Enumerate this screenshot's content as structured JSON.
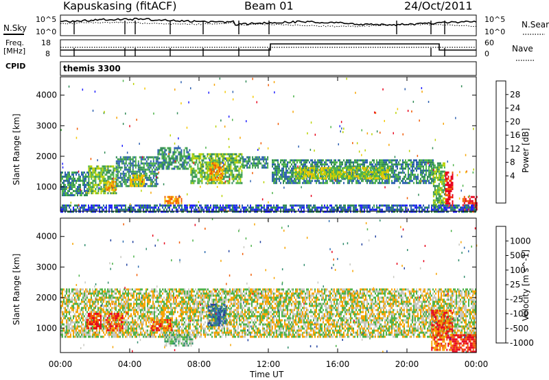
{
  "header": {
    "station": "Kapuskasing (fitACF)",
    "beam": "Beam 01",
    "date": "24/Oct/2011"
  },
  "top_panels": {
    "nsky_label": "N.Sky",
    "nsearch_label": "N.Search",
    "noise_ticks_left": [
      "10^5",
      "10^0"
    ],
    "noise_ticks_right": [
      "10^5",
      "10^0"
    ],
    "freq_label_top": "Freq.",
    "freq_label_bottom": "[MHz]",
    "freq_ticks": [
      "18",
      "8"
    ],
    "nave_label": "Nave",
    "nave_ticks": [
      "60",
      "0"
    ],
    "cpid_label": "CPID",
    "cpid_value": "themis 3300"
  },
  "chart_data": [
    {
      "type": "heatmap",
      "name": "power",
      "ylabel": "Slant Range [km]",
      "xlabel": "",
      "yticks": [
        1000,
        2000,
        3000,
        4000
      ],
      "ylim": [
        200,
        4600
      ],
      "xlim": [
        0,
        24
      ],
      "colorbar": {
        "label": "Power [dB]",
        "ticks": [
          "28",
          "24",
          "20",
          "16",
          "12",
          "8",
          "4"
        ],
        "colors": [
          "#e8001a",
          "#f25a00",
          "#f7a400",
          "#f4c800",
          "#b9d200",
          "#4db34a",
          "#2f8a55",
          "#2b5fb0",
          "#1e1eff"
        ]
      },
      "regions": [
        {
          "t0": 0.0,
          "t1": 1.6,
          "r0": 700,
          "r1": 1500,
          "level": 2
        },
        {
          "t0": 1.6,
          "t1": 3.2,
          "r0": 800,
          "r1": 1700,
          "level": 3
        },
        {
          "t0": 2.6,
          "t1": 3.2,
          "r0": 900,
          "r1": 1200,
          "level": 6
        },
        {
          "t0": 3.2,
          "t1": 5.6,
          "r0": 1000,
          "r1": 2000,
          "level": 2
        },
        {
          "t0": 4.0,
          "t1": 4.8,
          "r0": 1050,
          "r1": 1400,
          "level": 5
        },
        {
          "t0": 5.6,
          "t1": 7.5,
          "r0": 1600,
          "r1": 2300,
          "level": 2
        },
        {
          "t0": 6.0,
          "t1": 7.0,
          "r0": 450,
          "r1": 700,
          "level": 6
        },
        {
          "t0": 7.5,
          "t1": 10.5,
          "r0": 1100,
          "r1": 2100,
          "level": 3
        },
        {
          "t0": 8.6,
          "t1": 9.4,
          "r0": 1200,
          "r1": 1800,
          "level": 6
        },
        {
          "t0": 10.5,
          "t1": 12.0,
          "r0": 1600,
          "r1": 2000,
          "level": 2
        },
        {
          "t0": 12.2,
          "t1": 21.5,
          "r0": 1100,
          "r1": 1900,
          "level": 2
        },
        {
          "t0": 13.5,
          "t1": 19.0,
          "r0": 1300,
          "r1": 1650,
          "level": 4
        },
        {
          "t0": 21.5,
          "t1": 22.2,
          "r0": 300,
          "r1": 1800,
          "level": 3
        },
        {
          "t0": 22.2,
          "t1": 22.6,
          "r0": 400,
          "r1": 1500,
          "level": 8
        },
        {
          "t0": 23.2,
          "t1": 24.0,
          "r0": 200,
          "r1": 700,
          "level": 8
        },
        {
          "t0": 0.0,
          "t1": 24.0,
          "r0": 200,
          "r1": 420,
          "level": 1
        }
      ]
    },
    {
      "type": "heatmap",
      "name": "velocity",
      "ylabel": "Slant Range [km]",
      "xlabel": "Time UT",
      "xticks": [
        "00:00",
        "04:00",
        "08:00",
        "12:00",
        "16:00",
        "20:00",
        "00:00"
      ],
      "yticks": [
        1000,
        2000,
        3000,
        4000
      ],
      "ylim": [
        200,
        4600
      ],
      "xlim": [
        0,
        24
      ],
      "colorbar": {
        "label": "Velocity [m s^-1]",
        "ticks": [
          "1000",
          "500",
          "100",
          "25",
          "-25",
          "-100",
          "-500",
          "-1000"
        ],
        "colors": [
          "#1f3f9f",
          "#2e6db0",
          "#2f8c6b",
          "#4db34a",
          "#c8c8c0",
          "#f7a400",
          "#f25a00",
          "#e8001a"
        ]
      },
      "regions": [
        {
          "t0": 0.0,
          "t1": 24.0,
          "r0": 700,
          "r1": 2300,
          "level": 4
        },
        {
          "t0": 2.6,
          "t1": 3.6,
          "r0": 900,
          "r1": 1500,
          "level": 6
        },
        {
          "t0": 5.2,
          "t1": 6.4,
          "r0": 900,
          "r1": 1300,
          "level": 6
        },
        {
          "t0": 6.0,
          "t1": 7.6,
          "r0": 450,
          "r1": 800,
          "level": 3
        },
        {
          "t0": 8.5,
          "t1": 9.6,
          "r0": 1100,
          "r1": 1800,
          "level": 1
        },
        {
          "t0": 1.5,
          "t1": 2.3,
          "r0": 1000,
          "r1": 1500,
          "level": 7
        },
        {
          "t0": 21.4,
          "t1": 22.6,
          "r0": 300,
          "r1": 1600,
          "level": 6
        },
        {
          "t0": 22.6,
          "t1": 24.0,
          "r0": 200,
          "r1": 800,
          "level": 7
        }
      ]
    }
  ]
}
